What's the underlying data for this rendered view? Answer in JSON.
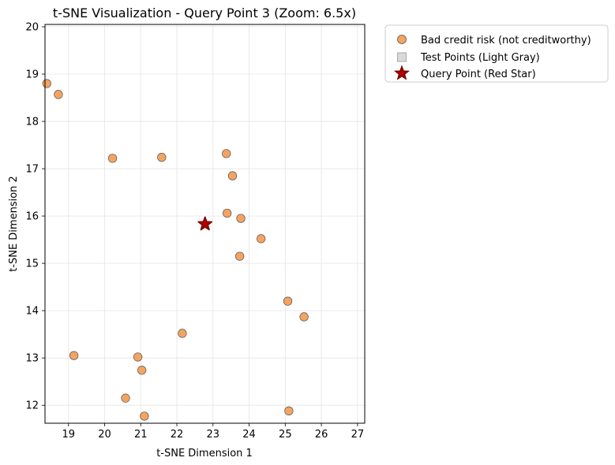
{
  "chart_data": {
    "type": "scatter",
    "title": "t-SNE Visualization - Query Point 3 (Zoom: 6.5x)",
    "xlabel": "t-SNE Dimension 1",
    "ylabel": "t-SNE Dimension 2",
    "xlim": [
      18.35,
      27.2
    ],
    "ylim": [
      11.62,
      20.05
    ],
    "xticks": [
      19,
      20,
      21,
      22,
      23,
      24,
      25,
      26,
      27
    ],
    "yticks": [
      12,
      13,
      14,
      15,
      16,
      17,
      18,
      19,
      20
    ],
    "grid": true,
    "legend_position": "outside-upper-right",
    "colors": {
      "bad": "#f4a460",
      "test": "#d9d9d9",
      "query": "#b30000",
      "query_edge": "#7a0000"
    },
    "series": [
      {
        "name": "Bad credit risk (not creditworthy)",
        "marker": "circle",
        "points": [
          [
            18.4,
            18.8
          ],
          [
            18.72,
            18.57
          ],
          [
            20.22,
            17.22
          ],
          [
            21.58,
            17.24
          ],
          [
            23.37,
            17.32
          ],
          [
            23.54,
            16.85
          ],
          [
            23.39,
            16.06
          ],
          [
            23.77,
            15.95
          ],
          [
            24.33,
            15.52
          ],
          [
            23.74,
            15.15
          ],
          [
            25.07,
            14.2
          ],
          [
            25.52,
            13.87
          ],
          [
            22.15,
            13.52
          ],
          [
            19.15,
            13.05
          ],
          [
            20.92,
            13.02
          ],
          [
            21.03,
            12.74
          ],
          [
            20.58,
            12.15
          ],
          [
            21.1,
            11.77
          ],
          [
            25.1,
            11.88
          ]
        ]
      },
      {
        "name": "Test Points (Light Gray)",
        "marker": "square",
        "points": []
      },
      {
        "name": "Query Point (Red Star)",
        "marker": "star",
        "points": [
          [
            22.78,
            15.83
          ]
        ]
      }
    ]
  }
}
